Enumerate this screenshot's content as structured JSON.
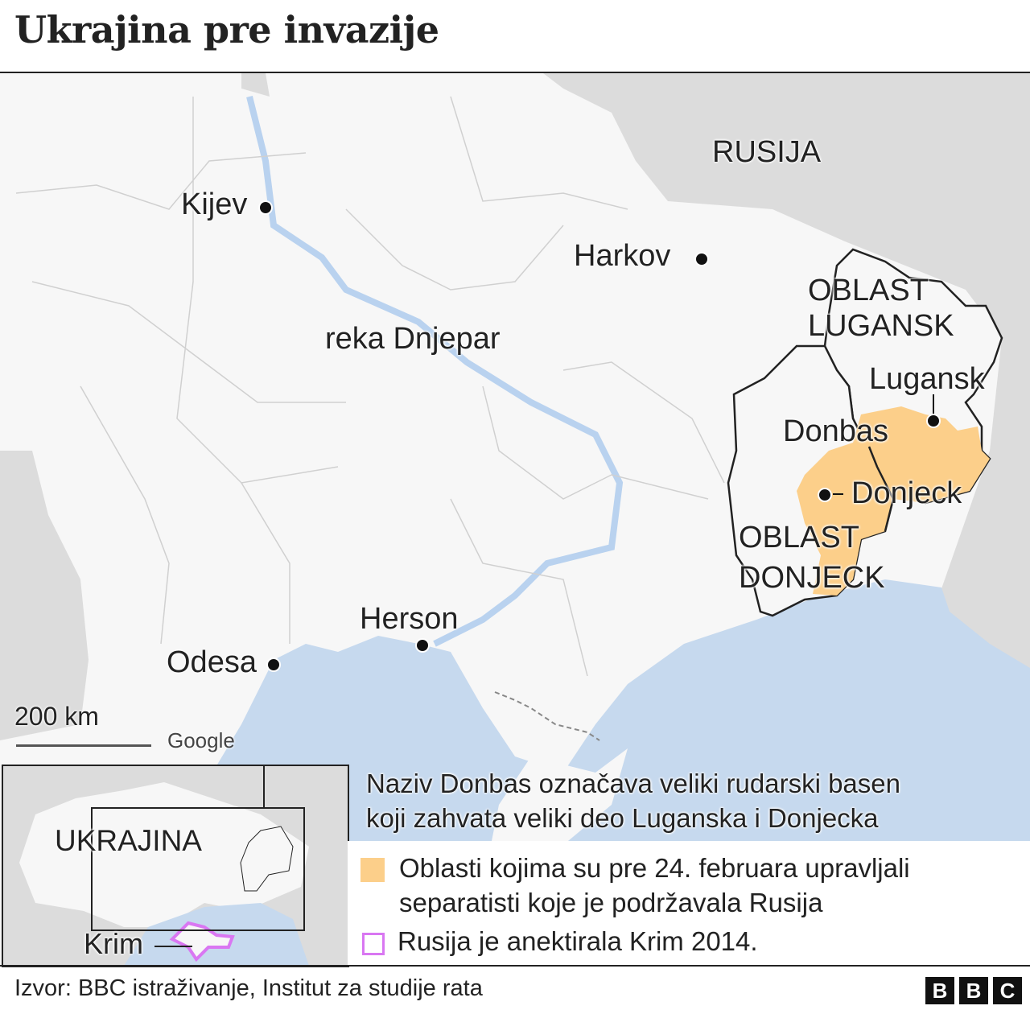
{
  "title": "Ukrajina pre invazije",
  "map": {
    "labels": {
      "russia": "RUSIJA",
      "kyiv": "Kijev",
      "kharkiv": "Harkov",
      "dnipro": "reka Dnjepar",
      "luhansk_oblast": "OBLAST LUGANSK",
      "luhansk_city": "Lugansk",
      "donbas": "Donbas",
      "donetsk_city": "Donjeck",
      "donetsk_oblast": "OBLAST DONJECK",
      "kherson": "Herson",
      "odesa": "Odesa"
    },
    "scale": "200 km",
    "attribution": "Google",
    "colors": {
      "land": "#f7f7f7",
      "neighbors": "#dcdcdc",
      "water": "#c6d9ee",
      "separatist": "#fccf8a",
      "crimea": "#d977f2"
    }
  },
  "inset": {
    "country": "UKRAJINA",
    "crimea": "Krim"
  },
  "note": {
    "line1": "Naziv Donbas označava veliki rudarski basen",
    "line2": "koji zahvata veliki deo Luganska i Donjecka"
  },
  "legend": [
    {
      "line1": "Oblasti kojima su pre 24. februara upravljali",
      "line2": "separatisti koje je podržavala Rusija"
    },
    {
      "label": "Rusija je anektirala Krim 2014."
    }
  ],
  "footer": {
    "source": "Izvor: BBC istraživanje, Institut za studije rata",
    "logo": [
      "B",
      "B",
      "C"
    ]
  }
}
